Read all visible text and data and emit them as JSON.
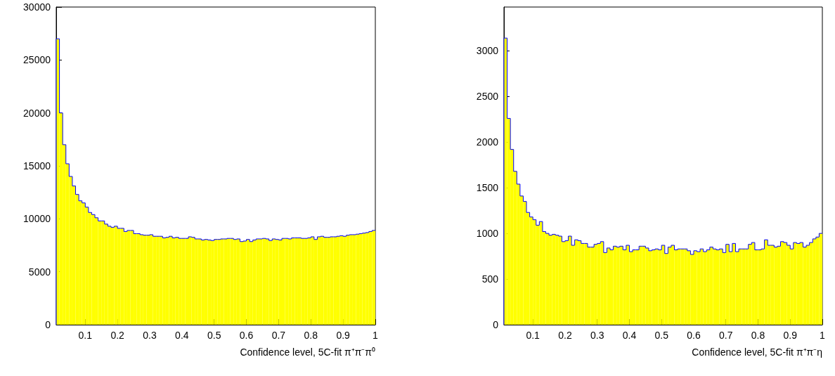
{
  "chart_data": [
    {
      "type": "histogram",
      "xlabel": "Confidence level, 5C-fit π⁺π⁻π⁰",
      "color": "#ffff00",
      "bins": [
        0.01,
        0.02,
        0.03,
        0.04,
        0.05,
        0.06,
        0.07,
        0.08,
        0.09,
        0.1,
        0.11,
        0.12,
        0.13,
        0.14,
        0.15,
        0.16,
        0.17,
        0.18,
        0.19,
        0.2,
        0.21,
        0.22,
        0.23,
        0.24,
        0.25,
        0.26,
        0.27,
        0.28,
        0.29,
        0.3,
        0.31,
        0.32,
        0.33,
        0.34,
        0.35,
        0.36,
        0.37,
        0.38,
        0.39,
        0.4,
        0.41,
        0.42,
        0.43,
        0.44,
        0.45,
        0.46,
        0.47,
        0.48,
        0.49,
        0.5,
        0.51,
        0.52,
        0.53,
        0.54,
        0.55,
        0.56,
        0.57,
        0.58,
        0.59,
        0.6,
        0.61,
        0.62,
        0.63,
        0.64,
        0.65,
        0.66,
        0.67,
        0.68,
        0.69,
        0.7,
        0.71,
        0.72,
        0.73,
        0.74,
        0.75,
        0.76,
        0.77,
        0.78,
        0.79,
        0.8,
        0.81,
        0.82,
        0.83,
        0.84,
        0.85,
        0.86,
        0.87,
        0.88,
        0.89,
        0.9,
        0.91,
        0.92,
        0.93,
        0.94,
        0.95,
        0.96,
        0.97,
        0.98,
        0.99,
        1
      ],
      "values": [
        27000,
        20000,
        17000,
        15200,
        14000,
        13100,
        12300,
        11700,
        11500,
        11100,
        10600,
        10400,
        10100,
        9800,
        9800,
        9500,
        9300,
        9200,
        9300,
        9100,
        9100,
        8800,
        8900,
        8900,
        8600,
        8600,
        8500,
        8450,
        8450,
        8500,
        8350,
        8350,
        8350,
        8200,
        8250,
        8350,
        8200,
        8250,
        8150,
        8150,
        8150,
        8300,
        8250,
        8100,
        8100,
        8000,
        8050,
        8000,
        7950,
        8050,
        8050,
        8100,
        8100,
        8150,
        8150,
        8050,
        8100,
        7850,
        7900,
        8050,
        7850,
        8000,
        8100,
        8100,
        8150,
        8100,
        7950,
        8100,
        8050,
        8000,
        8150,
        8150,
        8100,
        8200,
        8200,
        8200,
        8150,
        8150,
        8200,
        8300,
        8050,
        8300,
        8350,
        8250,
        8250,
        8300,
        8300,
        8350,
        8400,
        8350,
        8450,
        8500,
        8500,
        8550,
        8600,
        8650,
        8700,
        8800,
        8900
      ],
      "xlim": [
        0.01,
        1
      ],
      "xticks": [
        0.1,
        0.2,
        0.3,
        0.4,
        0.5,
        0.6,
        0.7,
        0.8,
        0.9,
        1
      ],
      "ylim": [
        0,
        30000
      ],
      "yticks": [
        0,
        5000,
        10000,
        15000,
        20000,
        25000,
        30000
      ],
      "grid": false
    },
    {
      "type": "histogram",
      "xlabel": "Confidence level, 5C-fit π⁺π⁻η",
      "color": "#ffff00",
      "bins": [
        0.01,
        0.02,
        0.03,
        0.04,
        0.05,
        0.06,
        0.07,
        0.08,
        0.09,
        0.1,
        0.11,
        0.12,
        0.13,
        0.14,
        0.15,
        0.16,
        0.17,
        0.18,
        0.19,
        0.2,
        0.21,
        0.22,
        0.23,
        0.24,
        0.25,
        0.26,
        0.27,
        0.28,
        0.29,
        0.3,
        0.31,
        0.32,
        0.33,
        0.34,
        0.35,
        0.36,
        0.37,
        0.38,
        0.39,
        0.4,
        0.41,
        0.42,
        0.43,
        0.44,
        0.45,
        0.46,
        0.47,
        0.48,
        0.49,
        0.5,
        0.51,
        0.52,
        0.53,
        0.54,
        0.55,
        0.56,
        0.57,
        0.58,
        0.59,
        0.6,
        0.61,
        0.62,
        0.63,
        0.64,
        0.65,
        0.66,
        0.67,
        0.68,
        0.69,
        0.7,
        0.71,
        0.72,
        0.73,
        0.74,
        0.75,
        0.76,
        0.77,
        0.78,
        0.79,
        0.8,
        0.81,
        0.82,
        0.83,
        0.84,
        0.85,
        0.86,
        0.87,
        0.88,
        0.89,
        0.9,
        0.91,
        0.92,
        0.93,
        0.94,
        0.95,
        0.96,
        0.97,
        0.98,
        0.99,
        1
      ],
      "values": [
        3140,
        2260,
        1920,
        1680,
        1540,
        1410,
        1350,
        1230,
        1180,
        1150,
        1090,
        1130,
        1020,
        1000,
        980,
        990,
        980,
        970,
        910,
        920,
        970,
        870,
        930,
        920,
        890,
        890,
        850,
        850,
        880,
        890,
        910,
        790,
        840,
        820,
        860,
        850,
        860,
        820,
        870,
        800,
        820,
        820,
        860,
        860,
        840,
        810,
        820,
        830,
        820,
        870,
        780,
        850,
        870,
        820,
        830,
        830,
        830,
        810,
        770,
        810,
        800,
        830,
        800,
        820,
        850,
        830,
        820,
        830,
        790,
        880,
        800,
        890,
        800,
        830,
        830,
        830,
        880,
        900,
        820,
        820,
        830,
        930,
        870,
        870,
        850,
        860,
        910,
        900,
        870,
        830,
        900,
        890,
        900,
        850,
        870,
        900,
        940,
        960,
        1000
      ],
      "xlim": [
        0.01,
        1
      ],
      "xticks": [
        0.1,
        0.2,
        0.3,
        0.4,
        0.5,
        0.6,
        0.7,
        0.8,
        0.9,
        1
      ],
      "ylim": [
        0,
        3480
      ],
      "yticks": [
        0,
        500,
        1000,
        1500,
        2000,
        2500,
        3000
      ],
      "grid": false
    }
  ]
}
